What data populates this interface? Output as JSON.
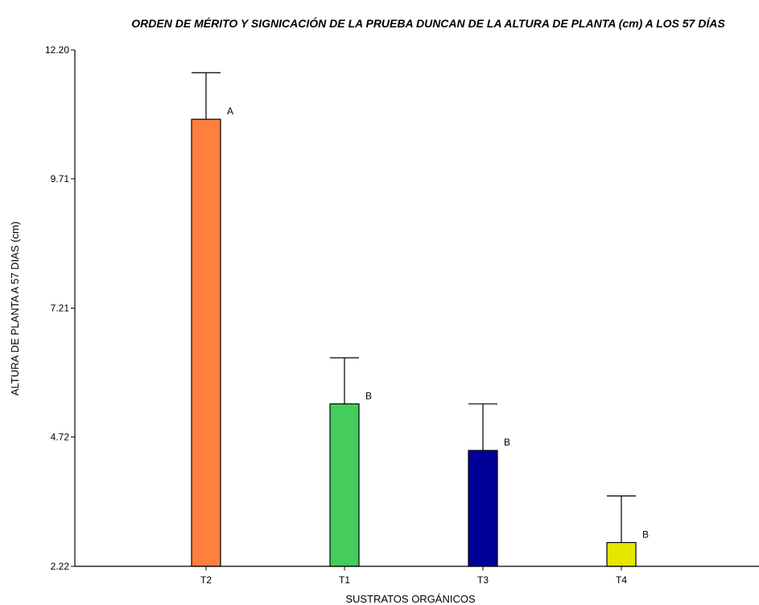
{
  "chart_data": {
    "type": "bar",
    "title": "ORDEN DE MÉRITO Y SIGNICACIÓN DE LA PRUEBA DUNCAN DE LA ALTURA DE PLANTA (cm) A LOS 57 DÍAS",
    "xlabel": "SUSTRATOS ORGÁNICOS",
    "ylabel": "ALTURA  DE PLANTA A 57 DIAS (cm)",
    "categories": [
      "T2",
      "T1",
      "T3",
      "T4"
    ],
    "values": [
      10.86,
      5.36,
      4.46,
      2.68
    ],
    "error_upper": [
      11.76,
      6.25,
      5.36,
      3.58
    ],
    "groups": [
      "A",
      "B",
      "B",
      "B"
    ],
    "colors": [
      "#ff7f3f",
      "#44cc5c",
      "#000099",
      "#e6e600"
    ],
    "yticks": [
      "2.22",
      "4.72",
      "7.21",
      "9.71",
      "12.20"
    ],
    "ylim": [
      2.22,
      12.2
    ],
    "grid": false
  }
}
